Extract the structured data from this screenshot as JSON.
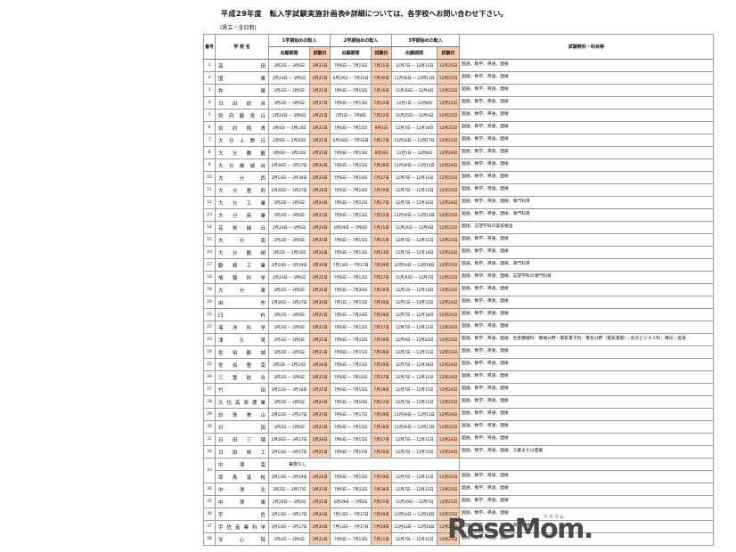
{
  "page": {
    "title": "平成29年度　転入学試験実施計画表",
    "note": "※詳細については、各学校へお問い合わせ下さい。",
    "subtitle": "(県立・全日制)"
  },
  "colors": {
    "exam_highlight": "#f8cbad"
  },
  "table": {
    "headers": {
      "no": "番号",
      "school": "学 校 名",
      "term1": "1学期始めの転入",
      "term2": "2学期始めの転入",
      "term3": "3学期始めの転入",
      "app_period": "出願期間",
      "exam_date": "試験日",
      "subjects": "試験教科・科目等"
    },
    "rows": [
      {
        "no": "1",
        "name": "高 田",
        "a1": "3月2日 — 3月6日",
        "e1": "3月23日",
        "a2": "7月6日 — 7月15日",
        "e2": "7月21日",
        "a3": "12月7日 — 12月11日",
        "e3": "12月25日",
        "subj": "国語、数学、英語、面接"
      },
      {
        "no": "2",
        "name": "国 東",
        "a1": "2月24日 — 3月6日",
        "e1": "3月25日",
        "a2": "6月29日 — 7月15日",
        "e2": "7月30日",
        "a3": "11月30日 — 12月11日",
        "e3": "12月25日",
        "subj": "国語、数学、英語、面接"
      },
      {
        "no": "3",
        "name": "杵 築",
        "a1": "3月2日 — 3月6日",
        "e1": "3月25日",
        "a2": "7月6日 — 7月15日",
        "e2": "7月26日",
        "a3": "11月30日 — 12月4日",
        "e3": "12月25日",
        "subj": "国語、数学、英語、面接"
      },
      {
        "no": "4",
        "name": "日 出 総 合",
        "a1": "3月2日 — 3月6日",
        "e1": "3月27日",
        "a2": "7月6日 — 7月13日",
        "e2": "7月22日",
        "a3": "12月1日 — 12月8日",
        "e3": "12月22日",
        "subj": "国語、数学、英語、面接"
      },
      {
        "no": "5",
        "name": "別 府 鶴 見 丘",
        "a1": "2月24日 — 3月6日",
        "e1": "3月25日",
        "a2": "7月1日 — 7月8日",
        "e2": "7月22日",
        "a3": "11月25日 — 12月4日",
        "e3": "12月21日",
        "subj": "国語、数学、英語、面接"
      },
      {
        "no": "6",
        "name": "別 府 翔 青",
        "a1": "3月4日 — 3月13日",
        "e1": "3月25日",
        "a2": "7月6日 — 7月15日",
        "e2": "8月1日",
        "a3": "12月7日 — 12月16日",
        "e3": "12月25日",
        "subj": "国語、数学、英語、面接"
      },
      {
        "no": "7",
        "name": "大 分 上 野 丘",
        "a1": "2月9日 — 2月20日",
        "e1": "3月25日",
        "a2": "6月29日 — 7月10日",
        "e2": "7月27日",
        "a3": "11月16日 — 11月27日",
        "e3": "12月21日",
        "subj": "国語、数学、英語、面接"
      },
      {
        "no": "8",
        "name": "大 分 舞 鶴",
        "a1": "3月6日 — 3月13日",
        "e1": "3月25日",
        "a2": "7月6日 — 7月13日",
        "e2": "8月3日",
        "a3": "12月1日 — 12月8日",
        "e3": "12月24日",
        "subj": "国語、数学、英語、面接"
      },
      {
        "no": "9",
        "name": "大 分 雄 城 台",
        "a1": "2月26日 — 3月27日",
        "e1": "3月30日",
        "a2": "7月6日 — 7月15日",
        "e2": "7月28日",
        "a3": "11月30日 — 12月11日",
        "e3": "12月24日",
        "subj": "国語、数学、英語、面接"
      },
      {
        "no": "10",
        "name": "大 分 西",
        "a1": "3月13日 — 3月19日",
        "e1": "3月26日",
        "a2": "7月6日 — 7月10日",
        "e2": "7月27日",
        "a3": "12月7日 — 12月11日",
        "e3": "12月25日",
        "subj": "国語、数学、英語、面接"
      },
      {
        "no": "11",
        "name": "大 分 豊 府",
        "a1": "2月26日 — 3月27日",
        "e1": "3月28日",
        "a2": "7月6日 — 7月10日",
        "e2": "7月29日",
        "a3": "12月7日 — 12月11日",
        "e3": "12月25日",
        "subj": "国語、数学、英語、面接"
      },
      {
        "no": "12",
        "name": "大 分 工 業",
        "a1": "3月2日 — 3月6日",
        "e1": "3月24日",
        "a2": "7月6日 — 7月22日",
        "e2": "7月27日",
        "a3": "12月7日 — 12月16日",
        "e3": "12月24日",
        "subj": "国語、数学、英語、面接、専門科目"
      },
      {
        "no": "13",
        "name": "大 分 商 業",
        "a1": "3月2日 — 3月6日",
        "e1": "3月25日",
        "a2": "7月6日 — 7月15日",
        "e2": "7月22日",
        "a3": "11月30日 — 12月11日",
        "e3": "12月25日",
        "subj": "国語、数学、英語、面接、専門科目"
      },
      {
        "no": "14",
        "name": "芸 術 緑 丘",
        "a1": "2月24日 — 3月6日",
        "e1": "3月24日",
        "a2": "6月29日 — 7月8日",
        "e2": "7月21日",
        "a3": "11月24日 — 12月4日",
        "e3": "12月21日",
        "subj": "面接、志望学科の実技検査"
      },
      {
        "no": "15",
        "name": "大 分 南",
        "a1": "3月2日 — 3月6日",
        "e1": "3月25日",
        "a2": "7月6日 — 7月15日",
        "e2": "7月21日",
        "a3": "12月7日 — 12月11日",
        "e3": "12月21日",
        "subj": "国語、数学、英語、面接"
      },
      {
        "no": "16",
        "name": "大 分 鶴 崎",
        "a1": "3月2日 — 3月13日",
        "e1": "3月26日",
        "a2": "7月6日 — 7月13日",
        "e2": "7月23日",
        "a3": "12月7日 — 12月14日",
        "e3": "12月22日",
        "subj": "国語、数学、英語、面接"
      },
      {
        "no": "17",
        "name": "鶴 崎 工 業",
        "a1": "3月10日 — 3月19日",
        "e1": "3月26日",
        "a2": "7月13日 — 7月17日",
        "e2": "7月29日",
        "a3": "12月14日 — 12月18日",
        "e3": "12月25日",
        "subj": "国語、数学、英語、面接、専門科目"
      },
      {
        "no": "18",
        "name": "情 報 科 学",
        "a1": "2月24日 — 3月6日",
        "e1": "3月25日",
        "a2": "7月6日 — 7月13日",
        "e2": "7月27日",
        "a3": "11月30日 — 12月7日",
        "e3": "12月21日",
        "subj": "国語、数学、英語、面接、志望学科の専門科目"
      },
      {
        "no": "19",
        "name": "大 分 東",
        "a1": "3月2日 — 3月6日",
        "e1": "3月26日",
        "a2": "7月6日 — 7月20日",
        "e2": "7月28日",
        "a3": "12月1日 — 12月14日",
        "e3": "12月22日",
        "subj": "国語、数学、英語、面接"
      },
      {
        "no": "20",
        "name": "由 布",
        "a1": "2月26日 — 3月27日",
        "e1": "3月30日",
        "a2": "7月1日 — 7月15日",
        "e2": "7月30日",
        "a3": "12月1日 — 12月15日",
        "e3": "12月24日",
        "subj": "国語、数学、英語、面接"
      },
      {
        "no": "21",
        "name": "臼 杵",
        "a1": "3月2日 — 3月6日",
        "e1": "3月25日",
        "a2": "7月6日 — 7月24日",
        "e2": "7月29日",
        "a3": "12月7日 — 12月18日",
        "e3": "12月25日",
        "subj": "国語、数学、英語、面接"
      },
      {
        "no": "22",
        "name": "海 洋 科 学",
        "a1": "3月2日 — 3月6日",
        "e1": "3月25日",
        "a2": "7月6日 — 7月15日",
        "e2": "7月27日",
        "a3": "12月7日 — 12月11日",
        "e3": "12月24日",
        "subj": "国語、数学、英語、面接"
      },
      {
        "no": "23",
        "name": "津 久 見",
        "a1": "3月3日 — 3月6日",
        "e1": "3月25日",
        "a2": "7月8日 — 7月22日",
        "e2": "7月28日",
        "a3": "12月9日 — 12月22日",
        "e3": "12月25日",
        "subj": "国語、数学、英語、面接、生産機械科：機械分野・電気電子科：電気分野（電気基礎）・会計ビジネス科：簿記・実技"
      },
      {
        "no": "24",
        "name": "佐 伯 鶴 城",
        "a1": "3月2日 — 3月6日",
        "e1": "3月25日",
        "a2": "7月6日 — 7月15日",
        "e2": "7月28日",
        "a3": "12月7日 — 12月11日",
        "e3": "12月25日",
        "subj": "国語、数学、英語、面接"
      },
      {
        "no": "25",
        "name": "佐 伯 豊 南",
        "a1": "3月2日 — 3月13日",
        "e1": "3月26日",
        "a2": "7月6日 — 7月15日",
        "e2": "7月29日",
        "a3": "12月7日 — 12月16日",
        "e3": "12月24日",
        "subj": "国語、数学、英語、面接"
      },
      {
        "no": "26",
        "name": "三 重 総 合",
        "a1": "3月2日 — 3月6日",
        "e1": "3月25日",
        "a2": "7月6日 — 7月10日",
        "e2": "7月27日",
        "a3": "12月7日 — 12月11日",
        "e3": "12月24日",
        "subj": "国語、数学、英語、面接"
      },
      {
        "no": "27",
        "name": "竹 田",
        "a1": "3月11日 — 3月18日",
        "e1": "3月25日",
        "a2": "7月6日 — 7月15日",
        "e2": "7月28日",
        "a3": "12月7日 — 12月15日",
        "e3": "12月24日",
        "subj": "国語、数学、英語、面接"
      },
      {
        "no": "28",
        "name": "久住高原農業",
        "a1": "3月2日 — 3月6日",
        "e1": "3月24日",
        "a2": "7月6日 — 7月10日",
        "e2": "7月22日",
        "a3": "12月7日 — 12月11日",
        "e3": "12月21日",
        "subj": "国語、数学、英語、面接"
      },
      {
        "no": "29",
        "name": "玖 珠 美 山",
        "a1": "2月12日 — 2月27日",
        "e1": "3月25日",
        "a2": "7月6日 — 7月17日",
        "e2": "7月29日",
        "a3": "11月30日 — 12月11日",
        "e3": "12月24日",
        "subj": "国語、数学、英語、面接"
      },
      {
        "no": "30",
        "name": "日 田",
        "a1": "3月2日 — 3月6日",
        "e1": "3月25日",
        "a2": "7月6日 — 7月15日",
        "e2": "7月28日",
        "a3": "11月30日 — 12月11日",
        "e3": "12月25日",
        "subj": "国語、数学、英語、面接"
      },
      {
        "no": "31",
        "name": "日 田 三 隈",
        "a1": "2月26日 — 3月27日",
        "e1": "3月28日",
        "a2": "7月6日 — 7月15日",
        "e2": "7月27日",
        "a3": "12月7日 — 12月11日",
        "e3": "12月24日",
        "subj": "国語、数学、英語、面接"
      },
      {
        "no": "32",
        "name": "日 田 林 工",
        "a1": "3月13日 — 3月17日",
        "e1": "3月25日",
        "a2": "7月6日 — 7月17日",
        "e2": "7月28日",
        "a3": "12月7日 — 12月15日",
        "e3": "12月24日",
        "subj": "国語、数学、英語、面接、工業または農業"
      },
      {
        "no": "33",
        "span": 2,
        "name": "中 津 南",
        "note": "実施なし",
        "subj": ""
      },
      {
        "no": "",
        "name": "耶 馬 溪 校",
        "a1": "3月13日 — 3月19日",
        "e1": "3月26日",
        "a2": "7月6日 — 7月15日",
        "e2": "7月29日",
        "a3": "12月7日 — 12月11日",
        "e3": "12月25日",
        "subj": "国語、数学、英語、面接"
      },
      {
        "no": "34",
        "name": "中 津 北",
        "a1": "3月2日 — 3月17日",
        "e1": "3月25日",
        "a2": "7月6日 — 7月22日",
        "e2": "7月28日",
        "a3": "12月7日 — 12月21日",
        "e3": "12月25日",
        "subj": "国語、数学、英語、面接"
      },
      {
        "no": "35",
        "name": "中 津 東",
        "a1": "2月26日 — 3月2日",
        "e1": "3月25日",
        "a2": "6月29日 — 7月6日",
        "e2": "7月21日",
        "a3": "11月30日 — 12月7日",
        "e3": "12月21日",
        "subj": "国語、数学、英語、面接"
      },
      {
        "no": "36",
        "name": "宇 佐",
        "a1": "3月13日 — 3月17日",
        "e1": "3月26日",
        "a2": "7月13日 — 7月17日",
        "e2": "7月29日",
        "a3": "12月14日 — 12月18日",
        "e3": "12月25日",
        "subj": "国語、数学、英語、面接"
      },
      {
        "no": "37",
        "name": "宇佐産業科学",
        "a1": "3月13日 — 3月17日",
        "e1": "3月26日",
        "a2": "7月13日 — 7月17日",
        "e2": "7月29日",
        "a3": "12月14日 — 12月18日",
        "e3": "12月25日",
        "subj": "国語、数学、英語、面接、専門科目"
      },
      {
        "no": "38",
        "name": "安 心 院",
        "a1": "3月2日 — 3月6日",
        "e1": "3月23日",
        "a2": "7月6日 — 7月13日",
        "e2": "7月21日",
        "a3": "12月7日 — 12月11日",
        "e3": "12月21日",
        "subj": "国語、数学、英語、面接"
      }
    ]
  },
  "watermark": {
    "text": "ReseMom.",
    "ruby": "リセマム"
  }
}
